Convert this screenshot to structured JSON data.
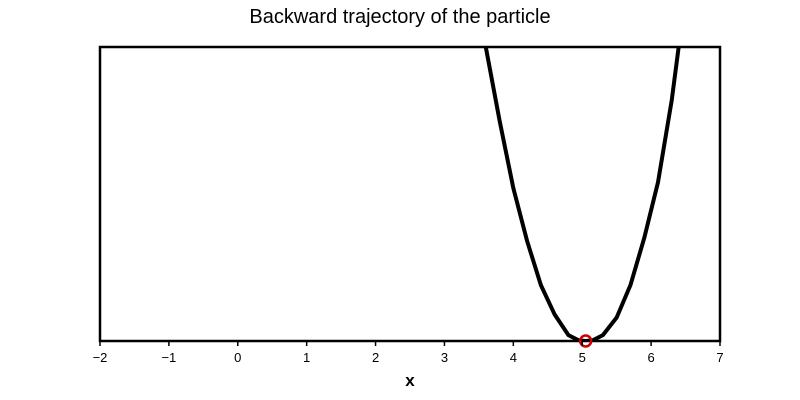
{
  "chart_data": {
    "type": "line",
    "title": "Backward trajectory of the particle",
    "xlabel": "x",
    "ylabel": "",
    "xlim": [
      -2,
      7
    ],
    "ylim": [
      0,
      1
    ],
    "xticks": [
      -2,
      -1,
      0,
      1,
      2,
      3,
      4,
      5,
      6,
      7
    ],
    "tick_labels": [
      "−2",
      "−1",
      "0",
      "1",
      "2",
      "3",
      "4",
      "5",
      "6",
      "7"
    ],
    "grid": false,
    "series": [
      {
        "color": "#000000",
        "x": [
          3.6,
          3.8,
          4.0,
          4.2,
          4.4,
          4.6,
          4.8,
          4.95,
          5.05,
          5.15,
          5.3,
          5.5,
          5.7,
          5.9,
          6.1,
          6.3,
          6.4
        ],
        "y": [
          1.0,
          0.75,
          0.52,
          0.34,
          0.19,
          0.09,
          0.02,
          0.002,
          0.0,
          0.002,
          0.02,
          0.08,
          0.19,
          0.35,
          0.54,
          0.82,
          1.0
        ]
      }
    ],
    "marker": {
      "x": 5.05,
      "y": 0.0,
      "color": "#cc0000",
      "shape": "open-circle"
    }
  }
}
